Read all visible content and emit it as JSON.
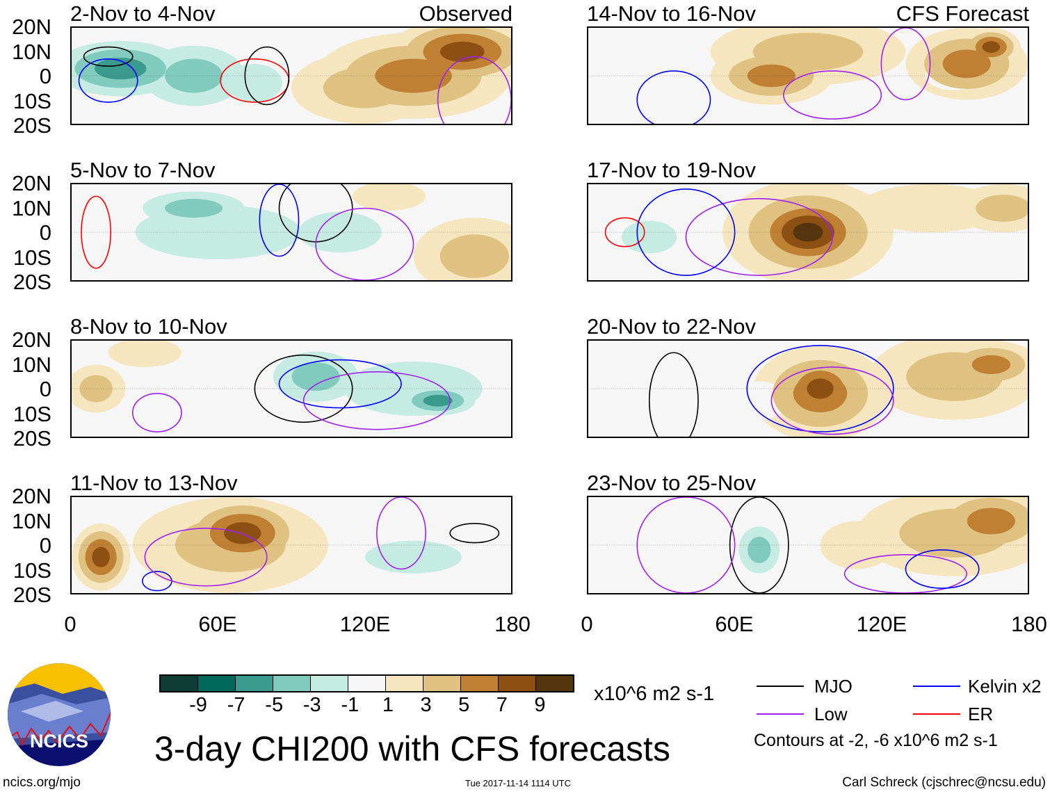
{
  "panels": [
    {
      "title": "2-Nov to 4-Nov",
      "label": "Observed",
      "blobs": [
        [
          20,
          3,
          35,
          15,
          -7
        ],
        [
          50,
          0,
          30,
          18,
          -5
        ],
        [
          75,
          -3,
          20,
          14,
          -3
        ],
        [
          160,
          10,
          30,
          14,
          7
        ],
        [
          140,
          0,
          40,
          18,
          5
        ],
        [
          120,
          -5,
          30,
          15,
          3
        ]
      ],
      "contours": [
        [
          "mjo",
          15,
          8,
          10,
          4
        ],
        [
          "kelvin",
          15,
          -2,
          12,
          9
        ],
        [
          "er",
          75,
          -2,
          14,
          9
        ],
        [
          "mjo",
          80,
          0,
          9,
          12
        ],
        [
          "low",
          165,
          -10,
          15,
          18
        ]
      ]
    },
    {
      "title": "5-Nov to 7-Nov",
      "label": "",
      "blobs": [
        [
          50,
          10,
          30,
          10,
          -5
        ],
        [
          60,
          0,
          60,
          20,
          -3
        ],
        [
          110,
          0,
          30,
          15,
          -3
        ],
        [
          165,
          -10,
          25,
          16,
          3
        ],
        [
          130,
          15,
          15,
          6,
          1
        ]
      ],
      "contours": [
        [
          "mjo",
          100,
          10,
          15,
          14
        ],
        [
          "kelvin",
          85,
          5,
          8,
          15
        ],
        [
          "low",
          120,
          -5,
          20,
          15
        ],
        [
          "er",
          10,
          0,
          6,
          15
        ]
      ]
    },
    {
      "title": "8-Nov to 10-Nov",
      "label": "",
      "blobs": [
        [
          10,
          0,
          12,
          10,
          3
        ],
        [
          100,
          5,
          25,
          15,
          -5
        ],
        [
          150,
          -5,
          20,
          8,
          -7
        ],
        [
          140,
          0,
          50,
          20,
          -3
        ],
        [
          30,
          15,
          15,
          6,
          1
        ]
      ],
      "contours": [
        [
          "mjo",
          95,
          0,
          20,
          14
        ],
        [
          "kelvin",
          110,
          2,
          25,
          10
        ],
        [
          "low",
          35,
          -10,
          10,
          8
        ],
        [
          "low",
          125,
          -5,
          30,
          12
        ]
      ]
    },
    {
      "title": "11-Nov to 13-Nov",
      "label": "",
      "blobs": [
        [
          12,
          -5,
          12,
          14,
          7
        ],
        [
          70,
          5,
          25,
          15,
          7
        ],
        [
          65,
          0,
          40,
          20,
          3
        ],
        [
          140,
          -5,
          35,
          12,
          -3
        ],
        [
          170,
          -15,
          20,
          8,
          -1
        ]
      ],
      "contours": [
        [
          "mjo",
          165,
          5,
          10,
          4
        ],
        [
          "kelvin",
          35,
          -15,
          6,
          4
        ],
        [
          "low",
          55,
          -5,
          25,
          12
        ],
        [
          "low",
          135,
          5,
          10,
          15
        ]
      ]
    },
    {
      "title": "14-Nov to 16-Nov",
      "label": "CFS Forecast",
      "blobs": [
        [
          75,
          0,
          25,
          12,
          5
        ],
        [
          90,
          10,
          40,
          14,
          3
        ],
        [
          165,
          12,
          12,
          8,
          7
        ],
        [
          155,
          5,
          25,
          15,
          5
        ],
        [
          150,
          0,
          12,
          6,
          -1
        ]
      ],
      "contours": [
        [
          "low",
          100,
          -8,
          20,
          10
        ],
        [
          "kelvin",
          35,
          -10,
          15,
          12
        ],
        [
          "low",
          130,
          5,
          10,
          15
        ]
      ]
    },
    {
      "title": "17-Nov to 19-Nov",
      "label": "",
      "blobs": [
        [
          90,
          0,
          25,
          16,
          9
        ],
        [
          90,
          0,
          35,
          22,
          5
        ],
        [
          25,
          -2,
          20,
          12,
          -3
        ],
        [
          170,
          10,
          20,
          10,
          3
        ],
        [
          140,
          10,
          30,
          10,
          1
        ]
      ],
      "contours": [
        [
          "er",
          15,
          0,
          8,
          6
        ],
        [
          "low",
          70,
          -2,
          30,
          16
        ],
        [
          "kelvin",
          40,
          0,
          20,
          18
        ]
      ]
    },
    {
      "title": "20-Nov to 22-Nov",
      "label": "",
      "blobs": [
        [
          95,
          0,
          18,
          14,
          7
        ],
        [
          95,
          -2,
          28,
          20,
          5
        ],
        [
          165,
          10,
          20,
          10,
          5
        ],
        [
          150,
          5,
          35,
          18,
          3
        ],
        [
          15,
          0,
          20,
          12,
          -1
        ],
        [
          70,
          -5,
          12,
          8,
          -1
        ]
      ],
      "contours": [
        [
          "kelvin",
          95,
          0,
          30,
          18
        ],
        [
          "low",
          100,
          -5,
          25,
          14
        ],
        [
          "mjo",
          35,
          -5,
          10,
          20
        ]
      ]
    },
    {
      "title": "23-Nov to 25-Nov",
      "label": "",
      "blobs": [
        [
          70,
          -2,
          12,
          14,
          -5
        ],
        [
          55,
          0,
          35,
          20,
          -1
        ],
        [
          165,
          10,
          25,
          14,
          5
        ],
        [
          150,
          5,
          40,
          18,
          3
        ],
        [
          110,
          0,
          15,
          10,
          1
        ]
      ],
      "contours": [
        [
          "mjo",
          70,
          0,
          12,
          20
        ],
        [
          "low",
          130,
          -12,
          25,
          8
        ],
        [
          "kelvin",
          145,
          -10,
          15,
          8
        ],
        [
          "low",
          40,
          0,
          20,
          20
        ]
      ]
    }
  ],
  "lat_labels": [
    "20N",
    "10N",
    "0",
    "10S",
    "20S"
  ],
  "lon_labels": [
    "0",
    "60E",
    "120E",
    "180"
  ],
  "colorbar": {
    "ticks": [
      "-9",
      "-7",
      "-5",
      "-3",
      "-1",
      "1",
      "3",
      "5",
      "7",
      "9"
    ],
    "colors": [
      "#0e3d36",
      "#00695c",
      "#3a9a8e",
      "#80cbbd",
      "#c6ebe2",
      "#f6f6f6",
      "#f5e6c0",
      "#dfc281",
      "#bf8033",
      "#8c5012",
      "#54350d"
    ],
    "units": "x10^6 m2 s-1"
  },
  "legend": {
    "mjo": "MJO",
    "kelvin": "Kelvin x2",
    "low": "Low",
    "er": "ER",
    "note": "Contours at -2, -6 x10^6 m2 s-1",
    "colors": {
      "mjo": "#000000",
      "kelvin": "#0000ff",
      "low": "#a020f0",
      "er": "#ff0000"
    }
  },
  "title": "3-day CHI200 with CFS forecasts",
  "logo_text": "NCICS",
  "footer": {
    "url": "ncics.org/mjo",
    "timestamp": "Tue 2017-11-14 1114 UTC",
    "author": "Carl Schreck (cjschrec@ncsu.edu)"
  }
}
